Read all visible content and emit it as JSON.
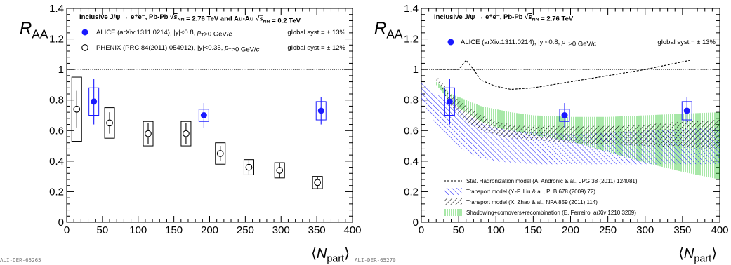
{
  "chart_data": [
    {
      "type": "scatter",
      "ylabel": "R",
      "ylabel_sub": "AA",
      "xlabel": "⟨N",
      "xlabel_sub": "part",
      "xlabel_close": "⟩",
      "xlim": [
        0,
        400
      ],
      "ylim": [
        0,
        1.4
      ],
      "xticks": [
        "0",
        "50",
        "100",
        "150",
        "200",
        "250",
        "300",
        "350",
        "400"
      ],
      "yticks": [
        "0",
        "0.2",
        "0.4",
        "0.6",
        "0.8",
        "1",
        "1.2",
        "1.4"
      ],
      "header": "Inclusive J/ψ → e⁺e⁻, Pb-Pb √s_NN = 2.76 TeV and Au-Au √s_NN = 0.2 TeV",
      "tag": "ALI-DER-65265",
      "reference_line": 1,
      "series": [
        {
          "name": "ALICE (arXiv:1311.0214), |y|<0.8, p_T>0 GeV/c",
          "syst_note": "global syst.= ± 13%",
          "color": "#1a1aff",
          "marker": "filled-circle",
          "points": [
            {
              "x": 38,
              "y": 0.79,
              "stat": 0.15,
              "sys": 0.09
            },
            {
              "x": 192,
              "y": 0.7,
              "stat": 0.08,
              "sys": 0.04
            },
            {
              "x": 356,
              "y": 0.73,
              "stat": 0.09,
              "sys": 0.06
            }
          ]
        },
        {
          "name": "PHENIX (PRC 84(2011) 054912), |y|<0.35, p_T>0 GeV/c",
          "syst_note": "global syst.= ± 12%",
          "color": "#000000",
          "marker": "open-circle",
          "points": [
            {
              "x": 14,
              "y": 0.74,
              "stat": 0.12,
              "sys": 0.21
            },
            {
              "x": 60,
              "y": 0.65,
              "stat": 0.07,
              "sys": 0.1
            },
            {
              "x": 114,
              "y": 0.58,
              "stat": 0.07,
              "sys": 0.08
            },
            {
              "x": 167,
              "y": 0.58,
              "stat": 0.07,
              "sys": 0.08
            },
            {
              "x": 215,
              "y": 0.45,
              "stat": 0.05,
              "sys": 0.07
            },
            {
              "x": 255,
              "y": 0.36,
              "stat": 0.05,
              "sys": 0.05
            },
            {
              "x": 298,
              "y": 0.34,
              "stat": 0.05,
              "sys": 0.05
            },
            {
              "x": 351,
              "y": 0.26,
              "stat": 0.04,
              "sys": 0.04
            }
          ]
        }
      ]
    },
    {
      "type": "scatter",
      "ylabel": "R",
      "ylabel_sub": "AA",
      "xlabel": "⟨N",
      "xlabel_sub": "part",
      "xlabel_close": "⟩",
      "xlim": [
        0,
        400
      ],
      "ylim": [
        0,
        1.4
      ],
      "xticks": [
        "0",
        "50",
        "100",
        "150",
        "200",
        "250",
        "300",
        "350",
        "400"
      ],
      "yticks": [
        "0",
        "0.2",
        "0.4",
        "0.6",
        "0.8",
        "1",
        "1.2",
        "1.4"
      ],
      "header": "Inclusive J/ψ → e⁺e⁻, Pb-Pb √s_NN = 2.76 TeV",
      "tag": "ALI-DER-65270",
      "reference_line": 1,
      "series": [
        {
          "name": "ALICE (arXiv:1311.0214), |y|<0.8, p_T>0 GeV/c",
          "syst_note": "global syst.= ± 13%",
          "color": "#1a1aff",
          "marker": "filled-circle",
          "points": [
            {
              "x": 38,
              "y": 0.79,
              "stat": 0.15,
              "sys": 0.09
            },
            {
              "x": 192,
              "y": 0.7,
              "stat": 0.08,
              "sys": 0.04
            },
            {
              "x": 356,
              "y": 0.73,
              "stat": 0.09,
              "sys": 0.06
            }
          ]
        }
      ],
      "models": [
        {
          "name": "Stat. Hadronization model (A. Andronic & al., JPG 38 (2011) 124081)",
          "style": "dashed-line",
          "x": [
            20,
            50,
            60,
            70,
            80,
            100,
            120,
            150,
            200,
            250,
            300,
            360
          ],
          "y": [
            1.0,
            1.0,
            1.06,
            1.0,
            0.93,
            0.89,
            0.87,
            0.88,
            0.92,
            0.96,
            1.0,
            1.06
          ]
        },
        {
          "name": "Transport model (Y.-P. Liu & al., PLB 678 (2009) 72)",
          "style": "hatch-blue",
          "x": [
            0,
            20,
            40,
            60,
            80,
            100,
            120,
            150,
            200,
            250,
            300,
            350,
            400
          ],
          "low": [
            0.8,
            0.64,
            0.54,
            0.46,
            0.42,
            0.4,
            0.39,
            0.38,
            0.38,
            0.38,
            0.38,
            0.38,
            0.38
          ],
          "high": [
            0.94,
            0.84,
            0.78,
            0.7,
            0.65,
            0.62,
            0.6,
            0.59,
            0.58,
            0.59,
            0.6,
            0.61,
            0.62
          ]
        },
        {
          "name": "Transport model (X. Zhao & al., NPA 859 (2011) 114)",
          "style": "hatch-black",
          "x": [
            20,
            40,
            60,
            80,
            100,
            120,
            150,
            200,
            250,
            300,
            350,
            400
          ],
          "low": [
            0.93,
            0.76,
            0.66,
            0.6,
            0.57,
            0.55,
            0.54,
            0.52,
            0.51,
            0.5,
            0.49,
            0.48
          ],
          "high": [
            0.96,
            0.84,
            0.76,
            0.7,
            0.66,
            0.64,
            0.63,
            0.63,
            0.63,
            0.64,
            0.66,
            0.67
          ]
        },
        {
          "name": "Shadowing+comovers+recombination (E. Ferreiro, arXiv:1210.3209)",
          "style": "hatch-green",
          "x": [
            20,
            40,
            60,
            80,
            100,
            120,
            150,
            200,
            250,
            300,
            350,
            400
          ],
          "low": [
            0.9,
            0.78,
            0.72,
            0.66,
            0.62,
            0.6,
            0.57,
            0.53,
            0.46,
            0.39,
            0.33,
            0.28
          ],
          "high": [
            0.92,
            0.84,
            0.8,
            0.76,
            0.74,
            0.72,
            0.7,
            0.69,
            0.69,
            0.7,
            0.71,
            0.72
          ]
        }
      ]
    }
  ]
}
